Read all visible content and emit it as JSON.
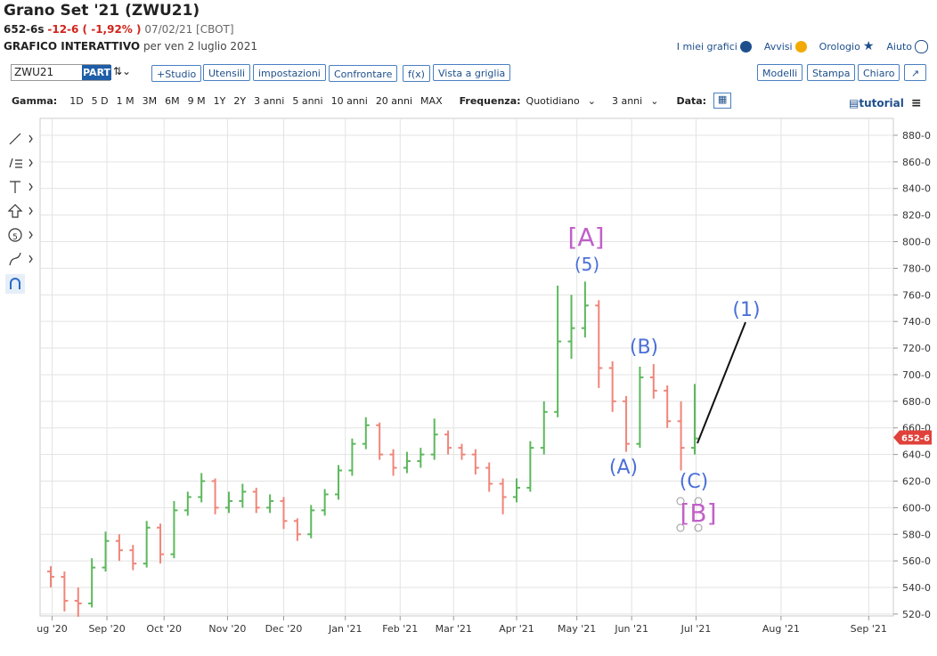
{
  "header": {
    "title": "Grano Set '21 (ZWU21)",
    "price": "652-6s",
    "change": "-12-6 ( -1,92% )",
    "date": "07/02/21 [CBOT]",
    "chart_label": "GRAFICO INTERATTIVO",
    "chart_date": "per ven 2 luglio 2021",
    "links": [
      "I miei grafici",
      "Avvisi",
      "Orologio",
      "Aiuto"
    ]
  },
  "toolbar": {
    "symbol": "ZWU21",
    "part": "PART",
    "buttons": [
      "+Studio",
      "Utensili",
      "impostazioni",
      "Confrontare",
      "f(x)",
      "Vista a griglia"
    ],
    "right_buttons": [
      "Modelli",
      "Stampa",
      "Chiaro"
    ]
  },
  "range_bar": {
    "label": "Gamma:",
    "ranges": [
      "1D",
      "5 D",
      "1 M",
      "3M",
      "6M",
      "9 M",
      "1Y",
      "2Y",
      "3 anni",
      "5 anni",
      "10 anni",
      "20 anni",
      "MAX"
    ],
    "frequency_label": "Frequenza:",
    "frequency": "Quotidiano",
    "period": "3 anni",
    "date_label": "Data:",
    "tutorial": "tutorial"
  },
  "chart_data": {
    "type": "ohlc",
    "up_color": "#5cb85c",
    "down_color": "#f0857a",
    "grid": true,
    "x": [
      0,
      1,
      2,
      3,
      4,
      5,
      6,
      7,
      8,
      9,
      10,
      11,
      12,
      13,
      14,
      15,
      16,
      17,
      18,
      19,
      20,
      21,
      22,
      23,
      24,
      25,
      26,
      27,
      28,
      29,
      30,
      31,
      32,
      33,
      34,
      35,
      36,
      37,
      38,
      39,
      40,
      41,
      42,
      43,
      44,
      45,
      46,
      47
    ],
    "open": [
      552,
      548,
      530,
      528,
      555,
      575,
      568,
      558,
      585,
      565,
      598,
      608,
      620,
      600,
      605,
      612,
      600,
      605,
      590,
      580,
      598,
      610,
      628,
      648,
      662,
      640,
      630,
      635,
      640,
      655,
      645,
      640,
      630,
      618,
      608,
      615,
      645,
      672,
      725,
      735,
      752,
      705,
      680,
      648,
      698,
      688,
      665,
      645
    ],
    "high": [
      556,
      552,
      540,
      562,
      582,
      580,
      572,
      590,
      588,
      605,
      612,
      626,
      622,
      612,
      618,
      615,
      610,
      608,
      592,
      602,
      614,
      632,
      652,
      668,
      664,
      644,
      642,
      645,
      667,
      658,
      648,
      644,
      634,
      622,
      622,
      650,
      680,
      767,
      760,
      770,
      756,
      710,
      684,
      706,
      708,
      692,
      680,
      693
    ],
    "low": [
      540,
      522,
      518,
      525,
      552,
      560,
      553,
      555,
      558,
      562,
      594,
      604,
      595,
      596,
      600,
      596,
      596,
      584,
      575,
      577,
      594,
      606,
      624,
      644,
      636,
      624,
      626,
      630,
      636,
      640,
      636,
      625,
      612,
      595,
      604,
      612,
      640,
      668,
      712,
      728,
      690,
      672,
      642,
      645,
      682,
      660,
      628,
      640
    ],
    "close": [
      548,
      530,
      528,
      555,
      575,
      568,
      558,
      585,
      565,
      598,
      608,
      620,
      600,
      605,
      612,
      600,
      605,
      590,
      580,
      598,
      610,
      628,
      648,
      662,
      640,
      630,
      635,
      640,
      655,
      645,
      640,
      630,
      618,
      608,
      615,
      645,
      672,
      725,
      735,
      752,
      705,
      680,
      648,
      698,
      688,
      665,
      645,
      652
    ],
    "xlim": [
      -0.78,
      61.5
    ],
    "xticks": [
      {
        "value": 0.1,
        "label": "ug '20"
      },
      {
        "value": 4.1,
        "label": "Sep '20"
      },
      {
        "value": 8.27,
        "label": "Oct '20"
      },
      {
        "value": 12.9,
        "label": "Nov '20"
      },
      {
        "value": 17.0,
        "label": "Dec '20"
      },
      {
        "value": 21.5,
        "label": "Jan '21"
      },
      {
        "value": 25.5,
        "label": "Feb '21"
      },
      {
        "value": 29.4,
        "label": "Mar '21"
      },
      {
        "value": 34.0,
        "label": "Apr '21"
      },
      {
        "value": 38.4,
        "label": "May '21"
      },
      {
        "value": 42.4,
        "label": "Jun '21"
      },
      {
        "value": 47.1,
        "label": "Jul '21"
      },
      {
        "value": 53.3,
        "label": "Aug '21"
      },
      {
        "value": 59.7,
        "label": "Sep '21"
      }
    ],
    "ylim": [
      518.6,
      892.7
    ],
    "yticks": [
      {
        "value": 520,
        "label": "520-0"
      },
      {
        "value": 540,
        "label": "540-0"
      },
      {
        "value": 560,
        "label": "560-0"
      },
      {
        "value": 580,
        "label": "580-0"
      },
      {
        "value": 600,
        "label": "600-0"
      },
      {
        "value": 620,
        "label": "620-0"
      },
      {
        "value": 640,
        "label": "640-0"
      },
      {
        "value": 660,
        "label": "660-0"
      },
      {
        "value": 680,
        "label": "680-0"
      },
      {
        "value": 700,
        "label": "700-0"
      },
      {
        "value": 720,
        "label": "720-0"
      },
      {
        "value": 740,
        "label": "740-0"
      },
      {
        "value": 760,
        "label": "760-0"
      },
      {
        "value": 780,
        "label": "780-0"
      },
      {
        "value": 800,
        "label": "800-0"
      },
      {
        "value": 820,
        "label": "820-0"
      },
      {
        "value": 840,
        "label": "840-0"
      },
      {
        "value": 860,
        "label": "860-0"
      },
      {
        "value": 880,
        "label": "880-0"
      }
    ],
    "price_tag": {
      "value": 652.75,
      "label": "652-6",
      "color": "#e0413a"
    },
    "annotations": [
      {
        "text": "[A]",
        "color": "#c160c9"
      },
      {
        "text": "(5)",
        "color": "#4a6fd8"
      },
      {
        "text": "(B)",
        "color": "#4a6fd8"
      },
      {
        "text": "(A)",
        "color": "#4a6fd8"
      },
      {
        "text": "(C)",
        "color": "#4a6fd8"
      },
      {
        "text": "[B]",
        "color": "#c160c9"
      },
      {
        "text": "(1)",
        "color": "#4a6fd8"
      }
    ]
  }
}
